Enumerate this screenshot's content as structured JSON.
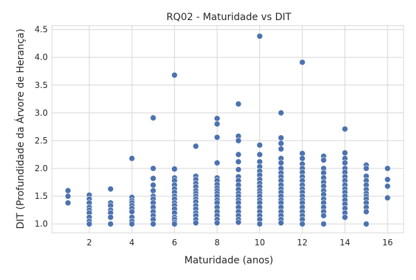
{
  "chart_data": {
    "type": "scatter",
    "title": "RQ02 - Maturidade vs DIT",
    "xlabel": "Maturidade (anos)",
    "ylabel": "DIT (Profundidade da Árvore de Herança)",
    "xlim": [
      0.25,
      16.75
    ],
    "ylim": [
      0.84,
      4.57
    ],
    "x_ticks": [
      2,
      4,
      6,
      8,
      10,
      12,
      14,
      16
    ],
    "y_ticks": [
      1.0,
      1.5,
      2.0,
      2.5,
      3.0,
      3.5,
      4.0,
      4.5
    ],
    "x_tick_labels": [
      "2",
      "4",
      "6",
      "8",
      "10",
      "12",
      "14",
      "16"
    ],
    "y_tick_labels": [
      "1.0",
      "1.5",
      "2.0",
      "2.5",
      "3.0",
      "3.5",
      "4.0",
      "4.5"
    ],
    "grid": true,
    "marker_color": "#4c72b0",
    "points": [
      [
        1,
        1.6
      ],
      [
        1,
        1.5
      ],
      [
        1,
        1.38
      ],
      [
        2,
        1.52
      ],
      [
        2,
        1.45
      ],
      [
        2,
        1.38
      ],
      [
        2,
        1.3
      ],
      [
        2,
        1.25
      ],
      [
        2,
        1.2
      ],
      [
        2,
        1.12
      ],
      [
        2,
        1.05
      ],
      [
        2,
        1.0
      ],
      [
        3,
        1.63
      ],
      [
        3,
        1.38
      ],
      [
        3,
        1.33
      ],
      [
        3,
        1.25
      ],
      [
        3,
        1.2
      ],
      [
        3,
        1.12
      ],
      [
        3,
        1.0
      ],
      [
        4,
        2.18
      ],
      [
        4,
        1.48
      ],
      [
        4,
        1.42
      ],
      [
        4,
        1.38
      ],
      [
        4,
        1.33
      ],
      [
        4,
        1.28
      ],
      [
        4,
        1.22
      ],
      [
        4,
        1.12
      ],
      [
        4,
        1.05
      ],
      [
        4,
        1.0
      ],
      [
        5,
        2.91
      ],
      [
        5,
        2.0
      ],
      [
        5,
        1.82
      ],
      [
        5,
        1.7
      ],
      [
        5,
        1.6
      ],
      [
        5,
        1.5
      ],
      [
        5,
        1.45
      ],
      [
        5,
        1.38
      ],
      [
        5,
        1.3
      ],
      [
        5,
        1.22
      ],
      [
        5,
        1.15
      ],
      [
        5,
        1.08
      ],
      [
        5,
        1.0
      ],
      [
        6,
        3.68
      ],
      [
        6,
        1.99
      ],
      [
        6,
        1.83
      ],
      [
        6,
        1.78
      ],
      [
        6,
        1.7
      ],
      [
        6,
        1.63
      ],
      [
        6,
        1.57
      ],
      [
        6,
        1.5
      ],
      [
        6,
        1.45
      ],
      [
        6,
        1.38
      ],
      [
        6,
        1.33
      ],
      [
        6,
        1.27
      ],
      [
        6,
        1.2
      ],
      [
        6,
        1.12
      ],
      [
        6,
        1.08
      ],
      [
        6,
        1.03
      ],
      [
        6,
        1.0
      ],
      [
        7,
        2.4
      ],
      [
        7,
        1.86
      ],
      [
        7,
        1.8
      ],
      [
        7,
        1.73
      ],
      [
        7,
        1.67
      ],
      [
        7,
        1.6
      ],
      [
        7,
        1.55
      ],
      [
        7,
        1.5
      ],
      [
        7,
        1.45
      ],
      [
        7,
        1.4
      ],
      [
        7,
        1.33
      ],
      [
        7,
        1.27
      ],
      [
        7,
        1.2
      ],
      [
        7,
        1.15
      ],
      [
        7,
        1.08
      ],
      [
        7,
        1.02
      ],
      [
        8,
        2.9
      ],
      [
        8,
        2.8
      ],
      [
        8,
        2.56
      ],
      [
        8,
        2.1
      ],
      [
        8,
        1.83
      ],
      [
        8,
        1.78
      ],
      [
        8,
        1.71
      ],
      [
        8,
        1.65
      ],
      [
        8,
        1.6
      ],
      [
        8,
        1.55
      ],
      [
        8,
        1.5
      ],
      [
        8,
        1.43
      ],
      [
        8,
        1.38
      ],
      [
        8,
        1.3
      ],
      [
        8,
        1.22
      ],
      [
        8,
        1.15
      ],
      [
        8,
        1.08
      ],
      [
        8,
        1.02
      ],
      [
        9,
        3.16
      ],
      [
        9,
        2.58
      ],
      [
        9,
        2.5
      ],
      [
        9,
        2.25
      ],
      [
        9,
        2.12
      ],
      [
        9,
        1.98
      ],
      [
        9,
        1.85
      ],
      [
        9,
        1.78
      ],
      [
        9,
        1.7
      ],
      [
        9,
        1.62
      ],
      [
        9,
        1.55
      ],
      [
        9,
        1.5
      ],
      [
        9,
        1.43
      ],
      [
        9,
        1.38
      ],
      [
        9,
        1.3
      ],
      [
        9,
        1.22
      ],
      [
        9,
        1.15
      ],
      [
        9,
        1.08
      ],
      [
        9,
        1.03
      ],
      [
        10,
        4.38
      ],
      [
        10,
        2.42
      ],
      [
        10,
        2.25
      ],
      [
        10,
        2.12
      ],
      [
        10,
        2.03
      ],
      [
        10,
        1.95
      ],
      [
        10,
        1.88
      ],
      [
        10,
        1.8
      ],
      [
        10,
        1.73
      ],
      [
        10,
        1.67
      ],
      [
        10,
        1.6
      ],
      [
        10,
        1.55
      ],
      [
        10,
        1.5
      ],
      [
        10,
        1.43
      ],
      [
        10,
        1.38
      ],
      [
        10,
        1.3
      ],
      [
        10,
        1.22
      ],
      [
        10,
        1.15
      ],
      [
        10,
        1.08
      ],
      [
        10,
        1.0
      ],
      [
        11,
        3.0
      ],
      [
        11,
        2.55
      ],
      [
        11,
        2.45
      ],
      [
        11,
        2.35
      ],
      [
        11,
        2.18
      ],
      [
        11,
        2.1
      ],
      [
        11,
        2.0
      ],
      [
        11,
        1.92
      ],
      [
        11,
        1.85
      ],
      [
        11,
        1.78
      ],
      [
        11,
        1.7
      ],
      [
        11,
        1.63
      ],
      [
        11,
        1.57
      ],
      [
        11,
        1.5
      ],
      [
        11,
        1.43
      ],
      [
        11,
        1.38
      ],
      [
        11,
        1.3
      ],
      [
        11,
        1.22
      ],
      [
        11,
        1.15
      ],
      [
        11,
        1.08
      ],
      [
        11,
        1.02
      ],
      [
        12,
        3.91
      ],
      [
        12,
        2.27
      ],
      [
        12,
        2.18
      ],
      [
        12,
        2.08
      ],
      [
        12,
        2.0
      ],
      [
        12,
        1.93
      ],
      [
        12,
        1.85
      ],
      [
        12,
        1.78
      ],
      [
        12,
        1.7
      ],
      [
        12,
        1.63
      ],
      [
        12,
        1.57
      ],
      [
        12,
        1.5
      ],
      [
        12,
        1.43
      ],
      [
        12,
        1.38
      ],
      [
        12,
        1.3
      ],
      [
        12,
        1.22
      ],
      [
        12,
        1.15
      ],
      [
        12,
        1.08
      ],
      [
        12,
        1.0
      ],
      [
        13,
        2.22
      ],
      [
        13,
        2.15
      ],
      [
        13,
        2.0
      ],
      [
        13,
        1.92
      ],
      [
        13,
        1.83
      ],
      [
        13,
        1.75
      ],
      [
        13,
        1.68
      ],
      [
        13,
        1.6
      ],
      [
        13,
        1.53
      ],
      [
        13,
        1.45
      ],
      [
        13,
        1.38
      ],
      [
        13,
        1.3
      ],
      [
        13,
        1.22
      ],
      [
        13,
        1.15
      ],
      [
        13,
        1.0
      ],
      [
        14,
        2.71
      ],
      [
        14,
        2.28
      ],
      [
        14,
        2.18
      ],
      [
        14,
        2.1
      ],
      [
        14,
        2.0
      ],
      [
        14,
        1.93
      ],
      [
        14,
        1.85
      ],
      [
        14,
        1.78
      ],
      [
        14,
        1.7
      ],
      [
        14,
        1.63
      ],
      [
        14,
        1.57
      ],
      [
        14,
        1.5
      ],
      [
        14,
        1.43
      ],
      [
        14,
        1.36
      ],
      [
        14,
        1.28
      ],
      [
        14,
        1.2
      ],
      [
        14,
        1.12
      ],
      [
        15,
        2.06
      ],
      [
        15,
        2.0
      ],
      [
        15,
        1.86
      ],
      [
        15,
        1.78
      ],
      [
        15,
        1.7
      ],
      [
        15,
        1.62
      ],
      [
        15,
        1.55
      ],
      [
        15,
        1.5
      ],
      [
        15,
        1.45
      ],
      [
        15,
        1.38
      ],
      [
        15,
        1.3
      ],
      [
        15,
        1.22
      ],
      [
        15,
        1.0
      ],
      [
        16,
        2.0
      ],
      [
        16,
        1.8
      ],
      [
        16,
        1.68
      ],
      [
        16,
        1.47
      ]
    ]
  }
}
